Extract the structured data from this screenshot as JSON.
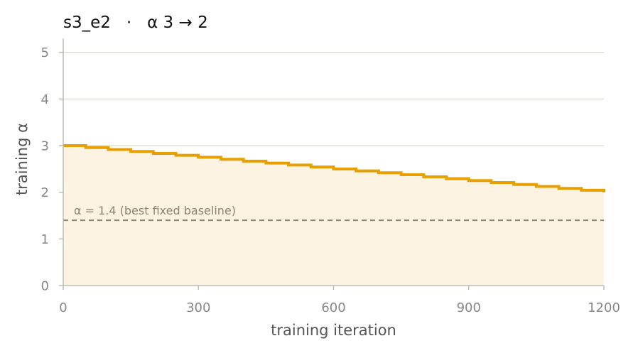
{
  "chart_data": {
    "type": "line",
    "title": "s3_e2   ·   α 3 → 2",
    "xlabel": "training iteration",
    "ylabel": "training α",
    "xlim": [
      0,
      1200
    ],
    "ylim": [
      0,
      5.3
    ],
    "x_ticks": [
      "0",
      "300",
      "600",
      "900",
      "1200"
    ],
    "y_ticks": [
      "0",
      "1",
      "2",
      "3",
      "4",
      "5"
    ],
    "grid": "horizontal",
    "step_width": 50,
    "series": [
      {
        "kind": "step",
        "color": "#e8a000",
        "x": [
          0,
          50,
          100,
          150,
          200,
          250,
          300,
          350,
          400,
          450,
          500,
          550,
          600,
          650,
          700,
          750,
          800,
          850,
          900,
          950,
          1000,
          1050,
          1100,
          1150,
          1200
        ],
        "values": [
          3.0,
          2.958,
          2.917,
          2.875,
          2.833,
          2.792,
          2.75,
          2.708,
          2.667,
          2.625,
          2.583,
          2.542,
          2.5,
          2.458,
          2.417,
          2.375,
          2.333,
          2.292,
          2.25,
          2.208,
          2.167,
          2.125,
          2.083,
          2.042,
          2.0
        ]
      }
    ],
    "fill_color": "#fdf3e2",
    "baseline": {
      "value": 1.4,
      "label": "α = 1.4 (best fixed baseline)",
      "color": "#8a8378"
    },
    "colors": {
      "grid": "#e2e0d2",
      "axis": "#bdbdb5"
    }
  }
}
